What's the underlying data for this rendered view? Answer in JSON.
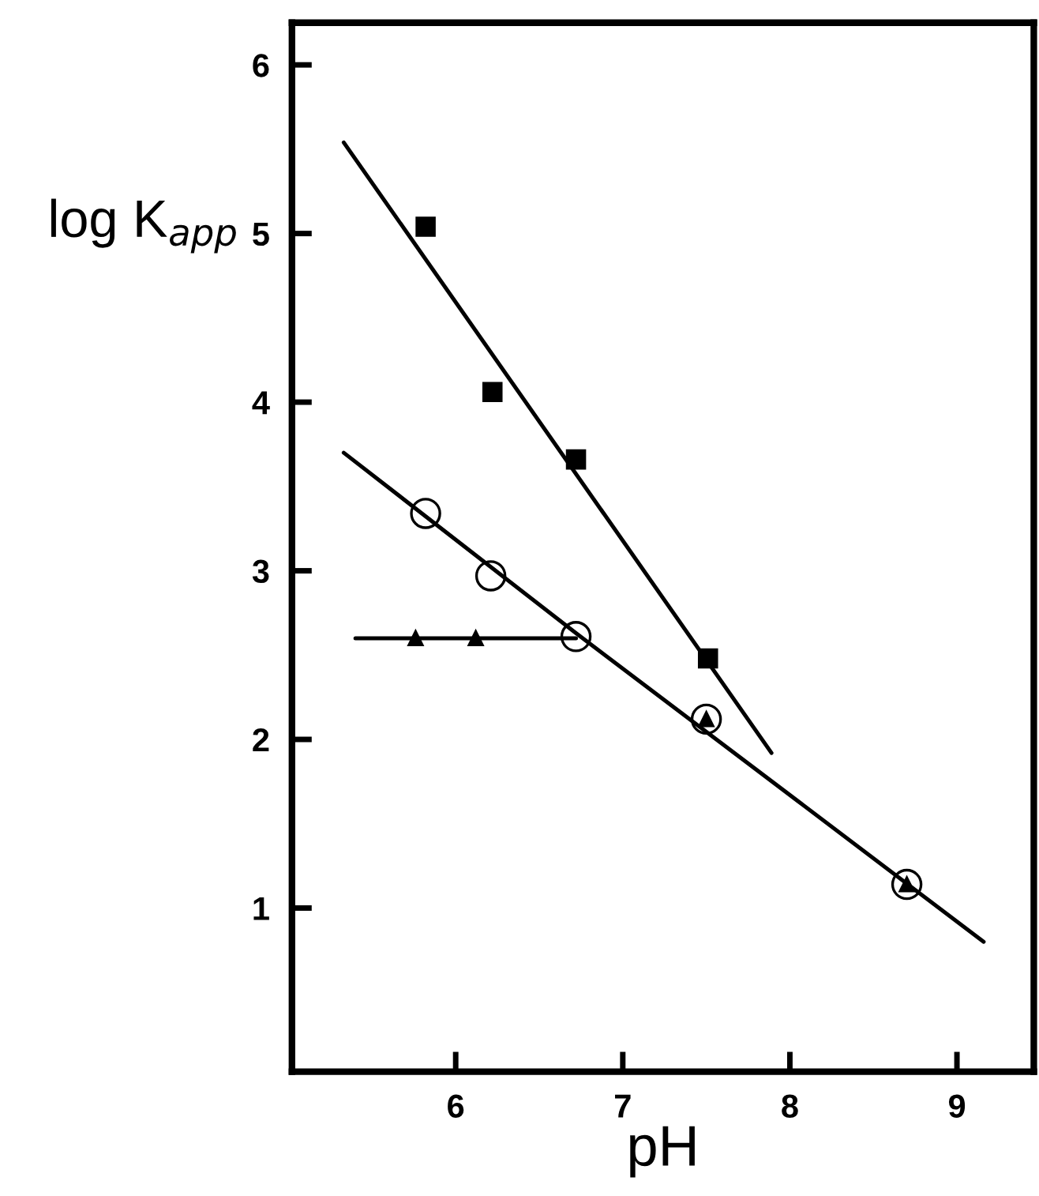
{
  "chart_data": {
    "type": "scatter",
    "xlabel": "pH",
    "ylabel": "log K$_{app}$",
    "xlim": [
      5.02,
      9.46
    ],
    "ylim": [
      0.03,
      6.25
    ],
    "xticks": [
      6,
      7,
      8,
      9
    ],
    "yticks": [
      1,
      2,
      3,
      4,
      5,
      6
    ],
    "grid": false,
    "series": [
      {
        "type": "line",
        "color": "#000000",
        "marker": "none",
        "x": [
          5.33,
          7.89
        ],
        "values": [
          5.54,
          1.92
        ]
      },
      {
        "type": "line",
        "color": "#000000",
        "marker": "none",
        "x": [
          5.33,
          6.72,
          9.16
        ],
        "values": [
          3.7,
          2.63,
          0.8
        ]
      },
      {
        "type": "line",
        "color": "#000000",
        "marker": "none",
        "x": [
          5.4,
          6.72
        ],
        "values": [
          2.6,
          2.6
        ]
      },
      {
        "color": "#000000",
        "marker": "square",
        "x": [
          5.82,
          6.22,
          6.72,
          7.51
        ],
        "values": [
          5.04,
          4.06,
          3.66,
          2.48
        ]
      },
      {
        "color": "#000000",
        "marker": "circle",
        "x": [
          5.82,
          6.21,
          6.72,
          7.5,
          8.7
        ],
        "values": [
          3.34,
          2.97,
          2.61,
          2.12,
          1.14
        ]
      },
      {
        "color": "#000000",
        "marker": "triangle",
        "x": [
          5.76,
          6.12,
          7.5,
          8.7
        ],
        "values": [
          2.6,
          2.6,
          2.12,
          1.14
        ]
      }
    ]
  }
}
